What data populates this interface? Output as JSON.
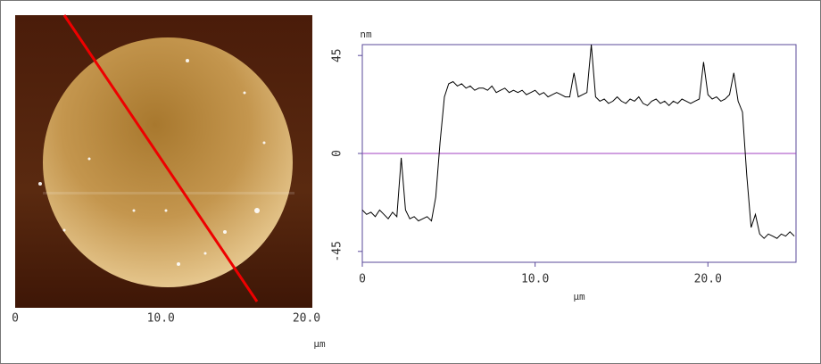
{
  "chart_data": [
    {
      "type": "image",
      "xlabel": "µm",
      "xlim": [
        0,
        20.4
      ],
      "xticks": [
        0,
        {
          "value": 10,
          "label": "10.0"
        },
        {
          "value": 20,
          "label": "20.0"
        }
      ]
    },
    {
      "type": "line",
      "ylabel": "nm",
      "xlabel": "µm",
      "xlim": [
        0,
        25.1
      ],
      "ylim": [
        -50,
        50
      ],
      "xticks": [
        0,
        {
          "value": 10,
          "label": "10.0"
        },
        {
          "value": 20,
          "label": "20.0"
        }
      ],
      "yticks": [
        -45,
        0,
        45
      ],
      "reference_line": {
        "value": 0,
        "color": "#a040c0"
      },
      "x": [
        0,
        0.25,
        0.5,
        0.75,
        1,
        1.25,
        1.5,
        1.75,
        2,
        2.25,
        2.5,
        2.75,
        3,
        3.25,
        3.5,
        3.75,
        4,
        4.25,
        4.5,
        4.75,
        5,
        5.25,
        5.5,
        5.75,
        6,
        6.25,
        6.5,
        6.75,
        7,
        7.25,
        7.5,
        7.75,
        8,
        8.25,
        8.5,
        8.75,
        9,
        9.25,
        9.5,
        9.75,
        10,
        10.25,
        10.5,
        10.75,
        11,
        11.25,
        11.5,
        11.75,
        12,
        12.25,
        12.5,
        12.75,
        13,
        13.25,
        13.5,
        13.75,
        14,
        14.25,
        14.5,
        14.75,
        15,
        15.25,
        15.5,
        15.75,
        16,
        16.25,
        16.5,
        16.75,
        17,
        17.25,
        17.5,
        17.75,
        18,
        18.25,
        18.5,
        18.75,
        19,
        19.25,
        19.5,
        19.75,
        20,
        20.25,
        20.5,
        20.75,
        21,
        21.25,
        21.5,
        21.75,
        22,
        22.25,
        22.5,
        22.75,
        23,
        23.25,
        23.5,
        23.75,
        24,
        24.25,
        24.5,
        24.75,
        25
      ],
      "series": [
        {
          "color": "#000000",
          "values": [
            -26,
            -28,
            -27,
            -29,
            -26,
            -28,
            -30,
            -27,
            -29,
            -2,
            -26,
            -30,
            -29,
            -31,
            -30,
            -29,
            -31,
            -20,
            5,
            26,
            32,
            33,
            31,
            32,
            30,
            31,
            29,
            30,
            30,
            29,
            31,
            28,
            29,
            30,
            28,
            29,
            28,
            29,
            27,
            28,
            29,
            27,
            28,
            26,
            27,
            28,
            27,
            26,
            26,
            37,
            26,
            27,
            28,
            50,
            26,
            24,
            25,
            23,
            24,
            26,
            24,
            23,
            25,
            24,
            26,
            23,
            22,
            24,
            25,
            23,
            24,
            22,
            24,
            23,
            25,
            24,
            23,
            24,
            25,
            42,
            27,
            25,
            26,
            24,
            25,
            27,
            37,
            24,
            19,
            -10,
            -34,
            -28,
            -37,
            -39,
            -37,
            -38,
            -39,
            -37,
            -38,
            -36,
            -38
          ]
        }
      ]
    }
  ]
}
